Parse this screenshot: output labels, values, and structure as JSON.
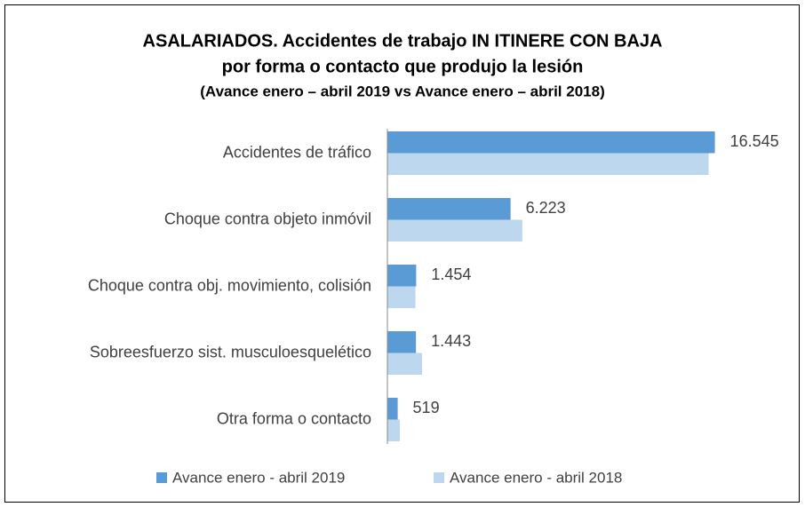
{
  "chart_data": {
    "type": "barh",
    "title": [
      "ASALARIADOS. Accidentes de trabajo IN ITINERE CON BAJA",
      "por forma o contacto que produjo la lesión"
    ],
    "subtitle": "(Avance enero – abril 2019 vs Avance enero – abril 2018)",
    "categories": [
      "Accidentes de tráfico",
      "Choque contra objeto inmóvil",
      "Choque contra obj. movimiento, colisión",
      "Sobreesfuerzo sist. musculoesquelético",
      "Otra forma o contacto"
    ],
    "series": [
      {
        "name": "Avance enero - abril 2019",
        "color": "#5b9bd5",
        "values": [
          16545,
          6223,
          1454,
          1443,
          519
        ],
        "value_labels": [
          "16.545",
          "6.223",
          "1.454",
          "1.443",
          "519"
        ]
      },
      {
        "name": "Avance enero - abril 2018",
        "color": "#bdd7ee",
        "values": [
          16230,
          6816,
          1420,
          1750,
          630
        ]
      }
    ],
    "xlim": [
      0,
      18000
    ]
  }
}
